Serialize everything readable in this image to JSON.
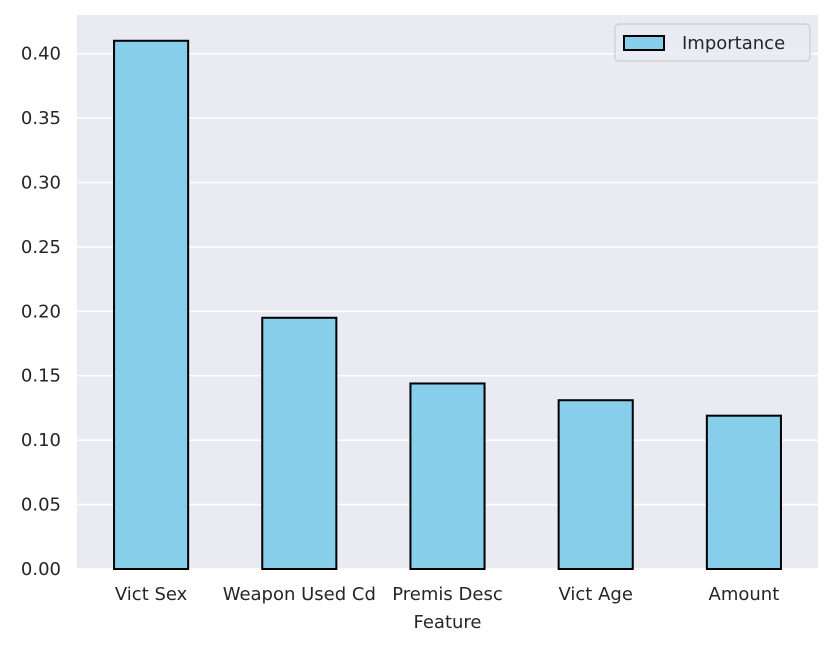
{
  "chart_data": {
    "type": "bar",
    "categories": [
      "Vict Sex",
      "Weapon Used Cd",
      "Premis Desc",
      "Vict Age",
      "Amount"
    ],
    "series": [
      {
        "name": "Importance",
        "values": [
          0.41,
          0.195,
          0.144,
          0.131,
          0.119
        ]
      }
    ],
    "xlabel": "Feature",
    "ylabel": "",
    "ylim": [
      0,
      0.43
    ],
    "yticks": [
      {
        "value": 0.0,
        "label": "0.00"
      },
      {
        "value": 0.05,
        "label": "0.05"
      },
      {
        "value": 0.1,
        "label": "0.10"
      },
      {
        "value": 0.15,
        "label": "0.15"
      },
      {
        "value": 0.2,
        "label": "0.20"
      },
      {
        "value": 0.25,
        "label": "0.25"
      },
      {
        "value": 0.3,
        "label": "0.30"
      },
      {
        "value": 0.35,
        "label": "0.35"
      },
      {
        "value": 0.4,
        "label": "0.40"
      }
    ],
    "grid": true,
    "legend_position": "top-right",
    "colors": {
      "bar_fill": "#87ceeb",
      "bar_edge": "#000000",
      "plot_background": "#eaeaf2",
      "grid": "#ffffff",
      "text": "#262626"
    }
  }
}
